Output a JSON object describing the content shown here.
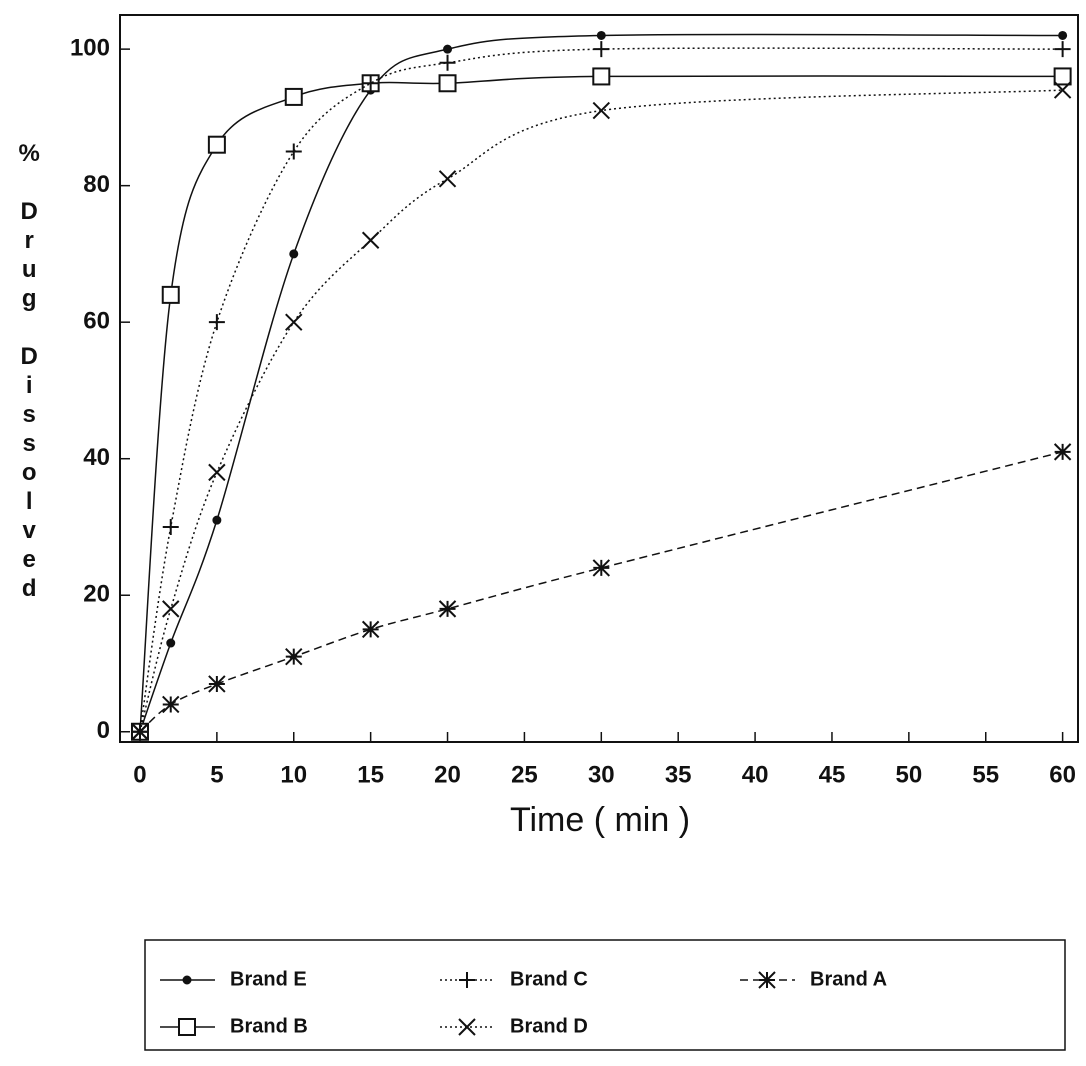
{
  "chart_data": {
    "type": "line",
    "x_label": "Time ( min )",
    "y_label": "% Drug Dissolved",
    "x": [
      0,
      2,
      5,
      10,
      15,
      20,
      30,
      60
    ],
    "series": [
      {
        "name": "Brand E",
        "color": "#111111",
        "marker": "dot",
        "dash": "solid",
        "values": [
          0,
          13,
          31,
          70,
          94,
          100,
          102,
          102
        ]
      },
      {
        "name": "Brand B",
        "color": "#111111",
        "marker": "square",
        "dash": "solid",
        "values": [
          0,
          64,
          86,
          93,
          95,
          95,
          96,
          96
        ]
      },
      {
        "name": "Brand C",
        "color": "#111111",
        "marker": "plus",
        "dash": "dotted",
        "values": [
          0,
          30,
          60,
          85,
          95,
          98,
          100,
          100
        ]
      },
      {
        "name": "Brand D",
        "color": "#111111",
        "marker": "x",
        "dash": "dotted",
        "values": [
          0,
          18,
          38,
          60,
          72,
          81,
          91,
          94
        ]
      },
      {
        "name": "Brand A",
        "color": "#111111",
        "marker": "asterisk",
        "dash": "dashed",
        "values": [
          0,
          4,
          7,
          11,
          15,
          18,
          24,
          41
        ]
      }
    ],
    "xlim": [
      -1.3,
      61
    ],
    "ylim": [
      -1.5,
      105
    ],
    "xticks": [
      0,
      5,
      10,
      15,
      20,
      25,
      30,
      35,
      40,
      45,
      50,
      55,
      60
    ],
    "yticks": [
      0,
      20,
      40,
      60,
      80,
      100
    ],
    "grid": false
  }
}
